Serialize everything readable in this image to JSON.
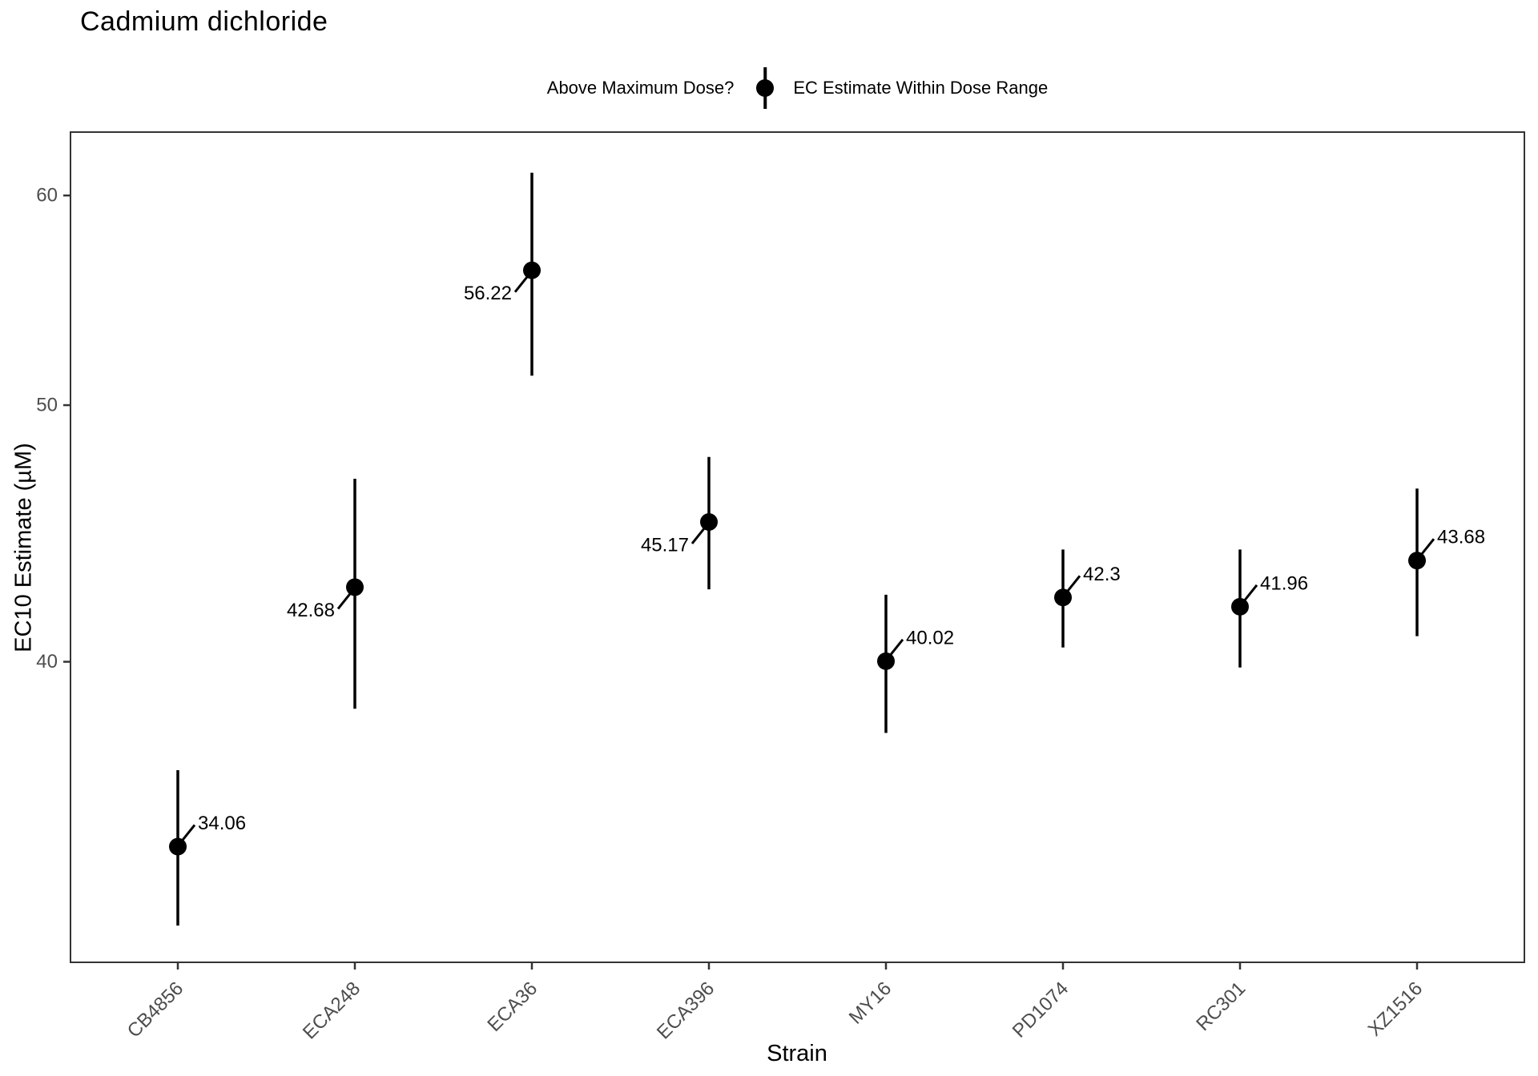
{
  "title": "Cadmium dichloride",
  "legend": {
    "title": "Above Maximum Dose?",
    "items": [
      {
        "label": "EC Estimate Within Dose Range",
        "symbol": "pointrange",
        "color": "#000000"
      }
    ]
  },
  "colors": {
    "point": "#000000",
    "errorbar": "#000000",
    "label_text": "#000000",
    "tick_text": "#4d4d4d",
    "panel_border": "#333333",
    "background": "#ffffff"
  },
  "chart_data": {
    "type": "pointrange",
    "title": "Cadmium dichloride",
    "xlabel": "Strain",
    "ylabel": "EC10 Estimate (µM)",
    "y_scale": "log10",
    "y_ticks": [
      40,
      50,
      60
    ],
    "y_domain": [
      30.8,
      63.4
    ],
    "grid": false,
    "legend_position": "top",
    "categories": [
      "CB4856",
      "ECA248",
      "ECA36",
      "ECA396",
      "MY16",
      "PD1074",
      "RC301",
      "XZ1516"
    ],
    "points": [
      {
        "strain": "CB4856",
        "estimate": 34.06,
        "lower": 31.8,
        "upper": 36.4,
        "label": "34.06",
        "label_side": "right"
      },
      {
        "strain": "ECA248",
        "estimate": 42.68,
        "lower": 38.4,
        "upper": 46.9,
        "label": "42.68",
        "label_side": "left"
      },
      {
        "strain": "ECA36",
        "estimate": 56.22,
        "lower": 51.3,
        "upper": 61.2,
        "label": "56.22",
        "label_side": "left"
      },
      {
        "strain": "ECA396",
        "estimate": 45.17,
        "lower": 42.6,
        "upper": 47.8,
        "label": "45.17",
        "label_side": "left"
      },
      {
        "strain": "MY16",
        "estimate": 40.02,
        "lower": 37.6,
        "upper": 42.4,
        "label": "40.02",
        "label_side": "right"
      },
      {
        "strain": "PD1074",
        "estimate": 42.3,
        "lower": 40.5,
        "upper": 44.1,
        "label": "42.3",
        "label_side": "right"
      },
      {
        "strain": "RC301",
        "estimate": 41.96,
        "lower": 39.8,
        "upper": 44.1,
        "label": "41.96",
        "label_side": "right"
      },
      {
        "strain": "XZ1516",
        "estimate": 43.68,
        "lower": 40.9,
        "upper": 46.5,
        "label": "43.68",
        "label_side": "right"
      }
    ]
  }
}
